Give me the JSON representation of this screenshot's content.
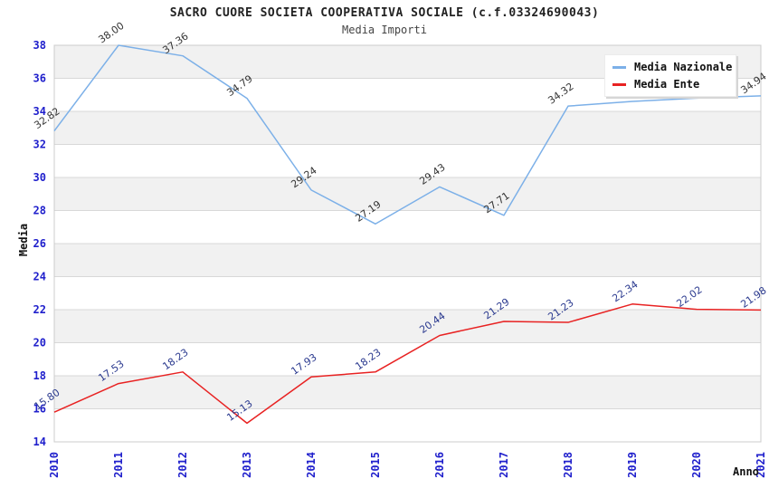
{
  "chart_data": {
    "type": "line",
    "title": "SACRO CUORE SOCIETA COOPERATIVA SOCIALE (c.f.03324690043)",
    "subtitle": "Media Importi",
    "xlabel": "Anno",
    "ylabel": "Media",
    "x": [
      "2010",
      "2011",
      "2012",
      "2013",
      "2014",
      "2015",
      "2016",
      "2017",
      "2018",
      "2019",
      "2020",
      "2021"
    ],
    "ylim": [
      14,
      38
    ],
    "ytick_step": 2,
    "grid": "alternating horizontal gray bands with light gridlines",
    "legend_position": "top-right",
    "axis_tick_color": "#2020cc",
    "band_color": "#f1f1f1",
    "gridline_color": "#d8d8d8",
    "plot_border_color": "#cccccc",
    "series": [
      {
        "name": "Media Nazionale",
        "color": "#7cb0e8",
        "label_color": "#333333",
        "values": [
          32.82,
          38.0,
          37.36,
          34.79,
          29.24,
          27.19,
          29.43,
          27.71,
          34.32,
          34.6,
          34.8,
          34.94
        ],
        "labels": [
          "32.82",
          "38.00",
          "37.36",
          "34.79",
          "29.24",
          "27.19",
          "29.43",
          "27.71",
          "34.32",
          null,
          null,
          "34.94"
        ]
      },
      {
        "name": "Media Ente",
        "color": "#e82222",
        "label_color": "#2b3a8f",
        "values": [
          15.8,
          17.53,
          18.23,
          15.13,
          17.93,
          18.23,
          20.44,
          21.29,
          21.23,
          22.34,
          22.02,
          21.98
        ],
        "labels": [
          "15.80",
          "17.53",
          "18.23",
          "15.13",
          "17.93",
          "18.23",
          "20.44",
          "21.29",
          "21.23",
          "22.34",
          "22.02",
          "21.98"
        ]
      }
    ]
  }
}
